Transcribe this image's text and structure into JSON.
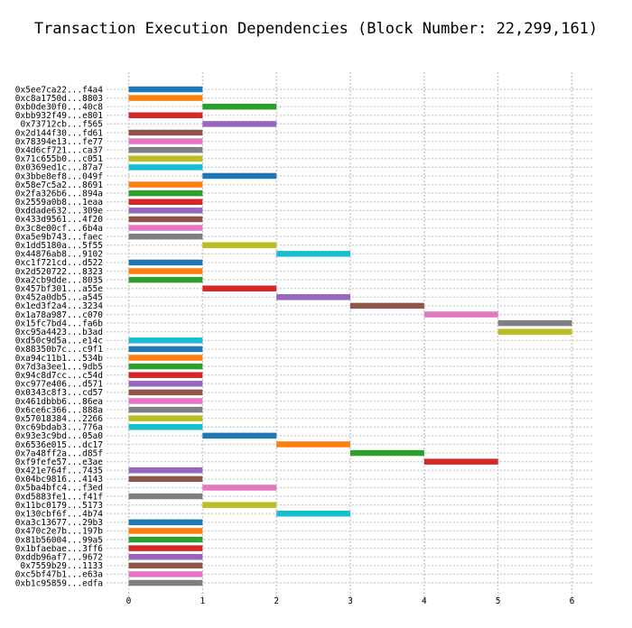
{
  "chart_data": {
    "type": "bar",
    "orientation": "horizontal-gantt",
    "title": "Transaction Execution Dependencies (Block Number: 22,299,161)",
    "xlabel": "",
    "ylabel": "",
    "xlim": [
      -0.3,
      6.3
    ],
    "x_ticks": [
      0,
      1,
      2,
      3,
      4,
      5,
      6
    ],
    "grid": true,
    "legend": "none",
    "palette": [
      "#1f77b4",
      "#ff7f0e",
      "#2ca02c",
      "#d62728",
      "#9467bd",
      "#8c564b",
      "#e377c2",
      "#7f7f7f",
      "#bcbd22",
      "#17becf"
    ],
    "transactions": [
      {
        "label": "0x5ee7ca22...f4a4",
        "start": 0,
        "end": 1
      },
      {
        "label": "0xc8a1750d...8803",
        "start": 0,
        "end": 1
      },
      {
        "label": "0xb0de30f0...40c8",
        "start": 1,
        "end": 2
      },
      {
        "label": "0xbb932f49...e801",
        "start": 0,
        "end": 1
      },
      {
        "label": "0x73712cb...f565",
        "start": 1,
        "end": 2
      },
      {
        "label": "0x2d144f30...fd61",
        "start": 0,
        "end": 1
      },
      {
        "label": "0x78394e13...fe77",
        "start": 0,
        "end": 1
      },
      {
        "label": "0x4d6cf721...ca37",
        "start": 0,
        "end": 1
      },
      {
        "label": "0x71c655b0...c051",
        "start": 0,
        "end": 1
      },
      {
        "label": "0x0369ed1c...87a7",
        "start": 0,
        "end": 1
      },
      {
        "label": "0x3bbe8ef8...049f",
        "start": 1,
        "end": 2
      },
      {
        "label": "0x58e7c5a2...8691",
        "start": 0,
        "end": 1
      },
      {
        "label": "0x2fa326b6...894a",
        "start": 0,
        "end": 1
      },
      {
        "label": "0x2559a0b8...1eaa",
        "start": 0,
        "end": 1
      },
      {
        "label": "0xddade632...309e",
        "start": 0,
        "end": 1
      },
      {
        "label": "0x433d9561...4f20",
        "start": 0,
        "end": 1
      },
      {
        "label": "0x3c8e00cf...6b4a",
        "start": 0,
        "end": 1
      },
      {
        "label": "0xa5e9b743...faec",
        "start": 0,
        "end": 1
      },
      {
        "label": "0x1dd5180a...5f55",
        "start": 1,
        "end": 2
      },
      {
        "label": "0x44876ab8...9102",
        "start": 2,
        "end": 3
      },
      {
        "label": "0xc1f721cd...d522",
        "start": 0,
        "end": 1
      },
      {
        "label": "0x2d520722...8323",
        "start": 0,
        "end": 1
      },
      {
        "label": "0xa2cb9dde...8035",
        "start": 0,
        "end": 1
      },
      {
        "label": "0x457bf301...a55e",
        "start": 1,
        "end": 2
      },
      {
        "label": "0x452a0db5...a545",
        "start": 2,
        "end": 3
      },
      {
        "label": "0x1ed3f2a4...3234",
        "start": 3,
        "end": 4
      },
      {
        "label": "0x1a78a987...c070",
        "start": 4,
        "end": 5
      },
      {
        "label": "0x15fc7bd4...fa6b",
        "start": 5,
        "end": 6
      },
      {
        "label": "0xc95a4423...b3ad",
        "start": 5,
        "end": 6
      },
      {
        "label": "0xd50c9d5a...e14c",
        "start": 0,
        "end": 1
      },
      {
        "label": "0x88350b7c...c9f1",
        "start": 0,
        "end": 1
      },
      {
        "label": "0xa94c11b1...534b",
        "start": 0,
        "end": 1
      },
      {
        "label": "0x7d3a3ee1...9db5",
        "start": 0,
        "end": 1
      },
      {
        "label": "0x94c8d7cc...c54d",
        "start": 0,
        "end": 1
      },
      {
        "label": "0xc977e406...d571",
        "start": 0,
        "end": 1
      },
      {
        "label": "0x0343c8f3...cd57",
        "start": 0,
        "end": 1
      },
      {
        "label": "0x461dbbb6...86ea",
        "start": 0,
        "end": 1
      },
      {
        "label": "0x6ce6c366...888a",
        "start": 0,
        "end": 1
      },
      {
        "label": "0x57018384...2266",
        "start": 0,
        "end": 1
      },
      {
        "label": "0xc69bdab3...776a",
        "start": 0,
        "end": 1
      },
      {
        "label": "0x93e3c9bd...05a0",
        "start": 1,
        "end": 2
      },
      {
        "label": "0x6536e015...dc17",
        "start": 2,
        "end": 3
      },
      {
        "label": "0x7a48ff2a...d85f",
        "start": 3,
        "end": 4
      },
      {
        "label": "0xf9fefe57...e3ae",
        "start": 4,
        "end": 5
      },
      {
        "label": "0x421e764f...7435",
        "start": 0,
        "end": 1
      },
      {
        "label": "0x04bc9816...4143",
        "start": 0,
        "end": 1
      },
      {
        "label": "0x5ba4bfc4...f3ed",
        "start": 1,
        "end": 2
      },
      {
        "label": "0xd5883fe1...f41f",
        "start": 0,
        "end": 1
      },
      {
        "label": "0x11bc0179...5173",
        "start": 1,
        "end": 2
      },
      {
        "label": "0x130cbf6f...4b74",
        "start": 2,
        "end": 3
      },
      {
        "label": "0xa3c13677...29b3",
        "start": 0,
        "end": 1
      },
      {
        "label": "0x470c2e7b...197b",
        "start": 0,
        "end": 1
      },
      {
        "label": "0x81b56004...99a5",
        "start": 0,
        "end": 1
      },
      {
        "label": "0x1bfaebae...3ff6",
        "start": 0,
        "end": 1
      },
      {
        "label": "0xddb96af7...9672",
        "start": 0,
        "end": 1
      },
      {
        "label": "0x7559b29...1133",
        "start": 0,
        "end": 1
      },
      {
        "label": "0xc5bf47b1...e63a",
        "start": 0,
        "end": 1
      },
      {
        "label": "0xb1c95859...edfa",
        "start": 0,
        "end": 1
      }
    ]
  }
}
